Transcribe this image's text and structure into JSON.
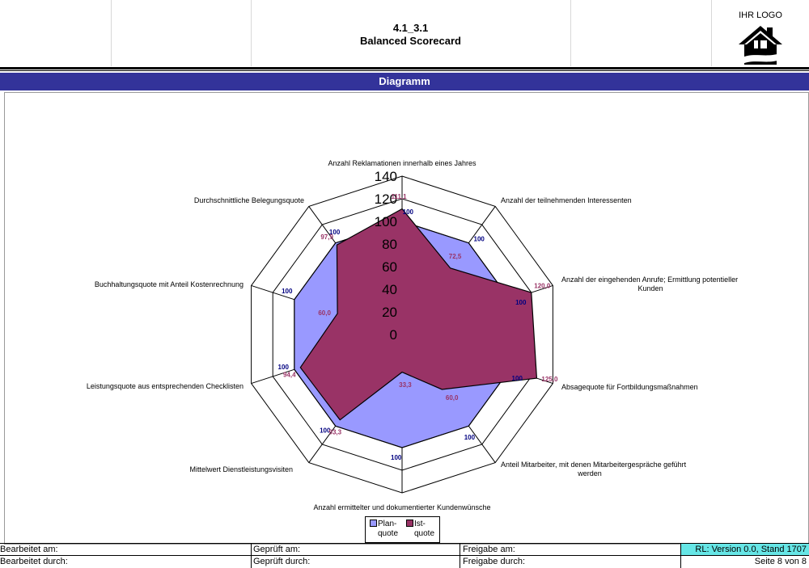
{
  "header": {
    "doc_number": "4.1_3.1",
    "doc_title": "Balanced Scorecard",
    "logo_text": "IHR LOGO"
  },
  "section_title": "Diagramm",
  "colors": {
    "band": "#33339a",
    "plan_fill": "#9999ff",
    "ist_fill": "#993366",
    "plan_label": "#000080",
    "ist_label": "#993366",
    "version_bg": "#66e6e6"
  },
  "chart_data": {
    "type": "radar",
    "axis_range": [
      0,
      140
    ],
    "ticks": [
      "0",
      "20",
      "40",
      "60",
      "80",
      "100",
      "120",
      "140"
    ],
    "categories": [
      "Anzahl Reklamationen innerhalb eines Jahres",
      "Anzahl der teilnehmenden Interessenten",
      "Anzahl der eingehenden Anrufe; Ermittlung potentieller Kunden",
      "Absagequote für Fortbildungsmaßnahmen",
      "Anteil Mitarbeiter, mit denen Mitarbeitergespräche geführt werden",
      "Anzahl ermittelter und dokumentierter Kundenwünsche",
      "Mittelwert Dienstleistungsvisiten",
      "Leistungsquote aus entsprechenden Checklisten",
      "Buchhaltungsquote mit Anteil Kostenrechnung",
      "Durchschnittliche Belegungsquote"
    ],
    "series": [
      {
        "name": "Plan-quote",
        "values": [
          100,
          100,
          100,
          100,
          100,
          100,
          100,
          100,
          100,
          100
        ],
        "labels": [
          "100",
          "100",
          "100",
          "100",
          "100",
          "100",
          "100",
          "100",
          "100",
          "100"
        ]
      },
      {
        "name": "Ist-quote",
        "values": [
          111.1,
          72.5,
          120.0,
          125.0,
          60.0,
          33.3,
          93.3,
          94.4,
          60.0,
          97.9
        ],
        "labels": [
          "111,1",
          "72,5",
          "120,0",
          "125,0",
          "60,0",
          "33,3",
          "93,3",
          "94,4",
          "60,0",
          "97,9"
        ]
      }
    ],
    "legend": [
      "Plan-quote",
      "Ist-quote"
    ],
    "legend_placement": "bottom"
  },
  "footer": {
    "edited_on_label": "Bearbeitet am:",
    "checked_on_label": "Geprüft am:",
    "release_on_label": "Freigabe am:",
    "version": "RL: Version 0.0, Stand 1707",
    "edited_by_label": "Bearbeitet durch:",
    "checked_by_label": "Geprüft durch:",
    "release_by_label": "Freigabe durch:",
    "page": "Seite 8 von 8"
  }
}
